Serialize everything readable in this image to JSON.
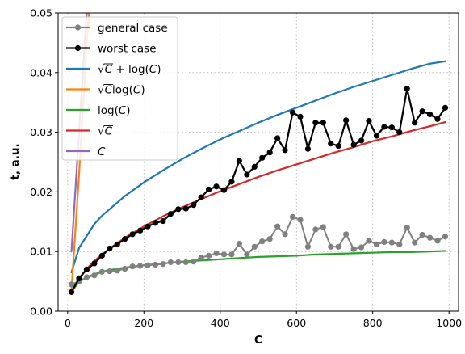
{
  "chart_data": {
    "type": "line",
    "xlabel": "C",
    "ylabel": "t, a.u.",
    "xlim": [
      -25,
      1025
    ],
    "ylim": [
      0,
      0.05
    ],
    "xticks": [
      0,
      200,
      400,
      600,
      800,
      1000
    ],
    "xtick_labels": [
      "0",
      "200",
      "400",
      "600",
      "800",
      "1000"
    ],
    "yticks": [
      0,
      0.01,
      0.02,
      0.03,
      0.04,
      0.05
    ],
    "ytick_labels": [
      "0.00",
      "0.01",
      "0.02",
      "0.03",
      "0.04",
      "0.05"
    ],
    "grid": "dotted",
    "legend_position": "upper-left",
    "series": [
      {
        "name": "general case",
        "color": "#808080",
        "marker": true,
        "width": 2,
        "x": [
          10,
          30,
          50,
          70,
          90,
          110,
          130,
          150,
          170,
          190,
          210,
          230,
          250,
          270,
          290,
          310,
          330,
          350,
          370,
          390,
          410,
          430,
          450,
          470,
          490,
          510,
          530,
          550,
          570,
          590,
          610,
          630,
          650,
          670,
          690,
          710,
          730,
          750,
          770,
          790,
          810,
          830,
          850,
          870,
          890,
          910,
          930,
          950,
          970,
          990
        ],
        "y": [
          0.0045,
          0.005,
          0.0057,
          0.006,
          0.0066,
          0.0067,
          0.0068,
          0.0071,
          0.0075,
          0.0076,
          0.0077,
          0.0078,
          0.0079,
          0.0082,
          0.0082,
          0.0082,
          0.0083,
          0.009,
          0.0093,
          0.0097,
          0.0095,
          0.0095,
          0.0113,
          0.0095,
          0.0108,
          0.0117,
          0.0121,
          0.0142,
          0.0129,
          0.0158,
          0.0153,
          0.0108,
          0.0137,
          0.0141,
          0.0108,
          0.0108,
          0.0129,
          0.0104,
          0.0107,
          0.0118,
          0.0112,
          0.0116,
          0.0115,
          0.0112,
          0.014,
          0.0115,
          0.0128,
          0.0123,
          0.0118,
          0.0125
        ]
      },
      {
        "name": "worst case",
        "color": "#000000",
        "marker": true,
        "width": 2.2,
        "x": [
          10,
          30,
          50,
          70,
          90,
          110,
          130,
          150,
          170,
          190,
          210,
          230,
          250,
          270,
          290,
          310,
          330,
          350,
          370,
          390,
          410,
          430,
          450,
          470,
          490,
          510,
          530,
          550,
          570,
          590,
          610,
          630,
          650,
          670,
          690,
          710,
          730,
          750,
          770,
          790,
          810,
          830,
          850,
          870,
          890,
          910,
          930,
          950,
          970,
          990
        ],
        "y": [
          0.0032,
          0.0055,
          0.007,
          0.008,
          0.0093,
          0.0105,
          0.0112,
          0.0121,
          0.0129,
          0.0135,
          0.0142,
          0.0148,
          0.0151,
          0.0163,
          0.0171,
          0.0172,
          0.0178,
          0.0191,
          0.0204,
          0.0209,
          0.0203,
          0.0217,
          0.0252,
          0.0229,
          0.0242,
          0.0257,
          0.0266,
          0.029,
          0.027,
          0.0333,
          0.0326,
          0.0272,
          0.0316,
          0.0316,
          0.0281,
          0.0277,
          0.032,
          0.0279,
          0.0286,
          0.0319,
          0.0294,
          0.0309,
          0.0308,
          0.03,
          0.0373,
          0.0316,
          0.0335,
          0.033,
          0.0322,
          0.0341
        ]
      },
      {
        "name": "√C + log(C)",
        "color": "#1f77b4",
        "width": 2.2,
        "x": [
          10,
          30,
          50,
          70,
          90,
          110,
          150,
          200,
          250,
          300,
          350,
          400,
          450,
          500,
          550,
          600,
          650,
          700,
          750,
          800,
          850,
          900,
          950,
          990
        ],
        "y": [
          0.0065,
          0.0106,
          0.0126,
          0.0146,
          0.016,
          0.0171,
          0.0193,
          0.0216,
          0.0236,
          0.0255,
          0.0272,
          0.0288,
          0.0302,
          0.0316,
          0.0329,
          0.0341,
          0.0353,
          0.0365,
          0.0376,
          0.0386,
          0.0396,
          0.0406,
          0.0415,
          0.0419
        ]
      },
      {
        "name": "√C·log(C)",
        "color": "#ff7f0e",
        "width": 2.2,
        "x": [
          10,
          30,
          50,
          60,
          70
        ],
        "y": [
          0.0035,
          0.023,
          0.045,
          0.053,
          0.062
        ]
      },
      {
        "name": "log(C)",
        "color": "#2ca02c",
        "width": 2.2,
        "x": [
          10,
          30,
          50,
          70,
          90,
          110,
          150,
          200,
          250,
          300,
          350,
          400,
          450,
          500,
          550,
          600,
          650,
          700,
          750,
          800,
          850,
          900,
          950,
          990
        ],
        "y": [
          0.0033,
          0.0049,
          0.0057,
          0.0062,
          0.0066,
          0.0069,
          0.0073,
          0.0077,
          0.008,
          0.0083,
          0.0085,
          0.0087,
          0.0089,
          0.0091,
          0.0092,
          0.0093,
          0.0095,
          0.0096,
          0.0097,
          0.0098,
          0.0099,
          0.0099,
          0.01,
          0.0101
        ]
      },
      {
        "name": "√C",
        "color": "#d62728",
        "width": 2.2,
        "x": [
          10,
          30,
          50,
          70,
          90,
          110,
          150,
          200,
          250,
          300,
          350,
          400,
          450,
          500,
          550,
          600,
          650,
          700,
          750,
          800,
          850,
          900,
          950,
          990
        ],
        "y": [
          0.0032,
          0.0055,
          0.0071,
          0.0084,
          0.0095,
          0.0105,
          0.0123,
          0.0142,
          0.0159,
          0.0174,
          0.0188,
          0.0201,
          0.0213,
          0.0225,
          0.0236,
          0.0246,
          0.0256,
          0.0266,
          0.0275,
          0.0285,
          0.0293,
          0.0302,
          0.031,
          0.0317
        ]
      },
      {
        "name": "C",
        "color": "#9467bd",
        "width": 2.2,
        "x": [
          10,
          20,
          30,
          40,
          50,
          60
        ],
        "y": [
          0.01,
          0.02,
          0.03,
          0.04,
          0.05,
          0.06
        ]
      }
    ]
  },
  "legend": {
    "items": [
      {
        "kind": "marker-line",
        "color": "#808080",
        "parts": [
          {
            "t": "general case",
            "italic": false,
            "sup": false
          }
        ]
      },
      {
        "kind": "marker-line",
        "color": "#000000",
        "parts": [
          {
            "t": "worst case",
            "italic": false,
            "sup": false
          }
        ]
      },
      {
        "kind": "line",
        "color": "#1f77b4",
        "parts": [
          {
            "t": "√",
            "italic": false,
            "sup": false
          },
          {
            "t": "C",
            "italic": true,
            "sup": true
          },
          {
            "t": " + log(",
            "italic": false,
            "sup": false
          },
          {
            "t": "C",
            "italic": true,
            "sup": false
          },
          {
            "t": ")",
            "italic": false,
            "sup": false
          }
        ]
      },
      {
        "kind": "line",
        "color": "#ff7f0e",
        "parts": [
          {
            "t": "√",
            "italic": false,
            "sup": false
          },
          {
            "t": "C",
            "italic": true,
            "sup": true
          },
          {
            "t": "log(",
            "italic": false,
            "sup": false
          },
          {
            "t": "C",
            "italic": true,
            "sup": false
          },
          {
            "t": ")",
            "italic": false,
            "sup": false
          }
        ]
      },
      {
        "kind": "line",
        "color": "#2ca02c",
        "parts": [
          {
            "t": "log(",
            "italic": false,
            "sup": false
          },
          {
            "t": "C",
            "italic": true,
            "sup": false
          },
          {
            "t": ")",
            "italic": false,
            "sup": false
          }
        ]
      },
      {
        "kind": "line",
        "color": "#d62728",
        "parts": [
          {
            "t": "√",
            "italic": false,
            "sup": false
          },
          {
            "t": "C",
            "italic": true,
            "sup": true
          }
        ]
      },
      {
        "kind": "line",
        "color": "#9467bd",
        "parts": [
          {
            "t": "C",
            "italic": true,
            "sup": false
          }
        ]
      }
    ]
  }
}
